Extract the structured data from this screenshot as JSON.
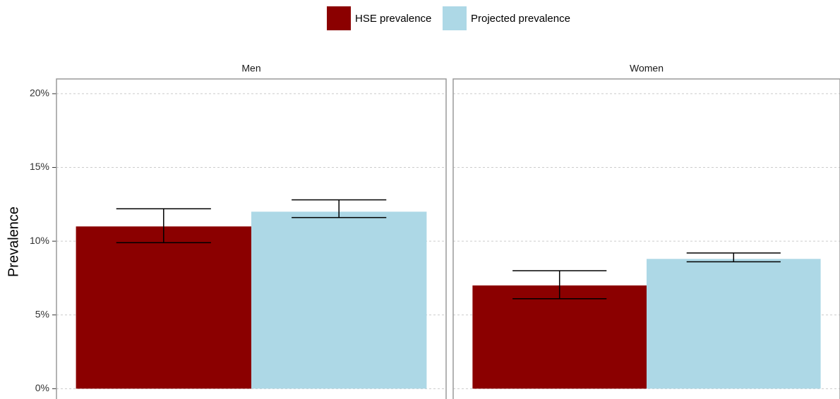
{
  "chart_data": {
    "type": "bar",
    "ylabel": "Prevalence",
    "legend": "top",
    "grid": true,
    "facets": [
      "Men",
      "Women"
    ],
    "series": [
      {
        "name": "HSE prevalence",
        "color": "#8b0000",
        "values": [
          11.0,
          7.0
        ],
        "lower": [
          9.9,
          6.1
        ],
        "upper": [
          12.2,
          8.0
        ]
      },
      {
        "name": "Projected prevalence",
        "color": "#add8e6",
        "values": [
          12.0,
          8.8
        ],
        "lower": [
          11.6,
          8.6
        ],
        "upper": [
          12.8,
          9.2
        ]
      }
    ],
    "ylim": [
      -0.7,
      21
    ],
    "yticks": [
      {
        "value": 0,
        "label": "0%"
      },
      {
        "value": 5,
        "label": "5%"
      },
      {
        "value": 10,
        "label": "10%"
      },
      {
        "value": 15,
        "label": "15%"
      },
      {
        "value": 20,
        "label": "20%"
      }
    ]
  }
}
